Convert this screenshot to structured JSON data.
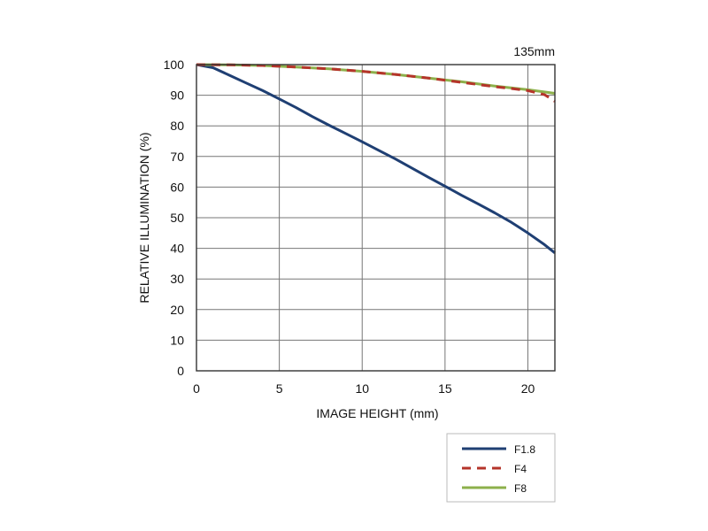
{
  "chart_data": {
    "type": "line",
    "title": "135mm",
    "xlabel": "IMAGE HEIGHT (mm)",
    "ylabel": "RELATIVE ILLUMINATION (%)",
    "xlim": [
      0,
      21.63
    ],
    "ylim": [
      0,
      100
    ],
    "xticks": [
      0,
      5,
      10,
      15,
      20
    ],
    "yticks": [
      0,
      10,
      20,
      30,
      40,
      50,
      60,
      70,
      80,
      90,
      100
    ],
    "grid": true,
    "legend_position": "bottom-right, outside plot",
    "series": [
      {
        "name": "F1.8",
        "color": "#1f3f73",
        "dash": "solid",
        "points": [
          [
            0,
            100
          ],
          [
            1,
            99
          ],
          [
            2,
            96.5
          ],
          [
            3,
            94
          ],
          [
            4,
            91.5
          ],
          [
            5,
            88.8
          ],
          [
            6,
            86
          ],
          [
            7,
            83
          ],
          [
            8,
            80.2
          ],
          [
            9,
            77.5
          ],
          [
            10,
            74.8
          ],
          [
            11,
            72
          ],
          [
            12,
            69.2
          ],
          [
            13,
            66.2
          ],
          [
            14,
            63.2
          ],
          [
            15,
            60.3
          ],
          [
            16,
            57.3
          ],
          [
            17,
            54.5
          ],
          [
            18,
            51.6
          ],
          [
            19,
            48.5
          ],
          [
            20,
            45
          ],
          [
            21,
            41.2
          ],
          [
            21.63,
            38.5
          ]
        ]
      },
      {
        "name": "F4",
        "color": "#b5342a",
        "dash": "dashed",
        "points": [
          [
            0,
            100
          ],
          [
            2,
            99.9
          ],
          [
            4,
            99.7
          ],
          [
            6,
            99.2
          ],
          [
            8,
            98.6
          ],
          [
            10,
            97.8
          ],
          [
            12,
            96.8
          ],
          [
            14,
            95.6
          ],
          [
            16,
            94.2
          ],
          [
            18,
            92.8
          ],
          [
            19,
            92.2
          ],
          [
            20,
            91.5
          ],
          [
            21,
            90.2
          ],
          [
            21.63,
            88
          ]
        ]
      },
      {
        "name": "F8",
        "color": "#8db04b",
        "dash": "solid",
        "points": [
          [
            0,
            100
          ],
          [
            2,
            99.9
          ],
          [
            4,
            99.7
          ],
          [
            6,
            99.2
          ],
          [
            8,
            98.6
          ],
          [
            10,
            97.8
          ],
          [
            12,
            96.8
          ],
          [
            14,
            95.6
          ],
          [
            16,
            94.4
          ],
          [
            18,
            93
          ],
          [
            20,
            91.8
          ],
          [
            21.63,
            90.6
          ]
        ]
      }
    ]
  }
}
